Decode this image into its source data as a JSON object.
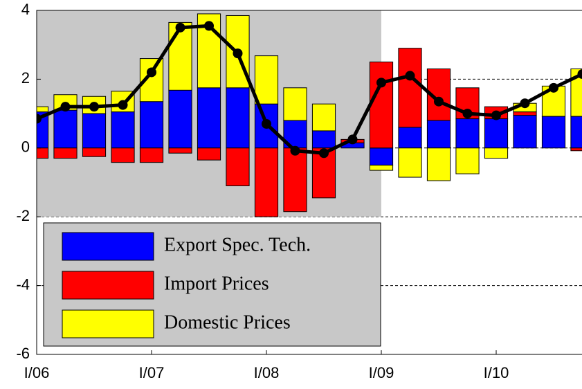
{
  "chart_data": {
    "type": "stacked-bar-line",
    "x": [
      0,
      1,
      2,
      3,
      4,
      5,
      6,
      7,
      8,
      9,
      10,
      11,
      12,
      13,
      14,
      15,
      16,
      17,
      18,
      19
    ],
    "xlim": [
      0,
      19
    ],
    "xticks": [
      {
        "value": 0,
        "label": "I/06"
      },
      {
        "value": 4,
        "label": "I/07"
      },
      {
        "value": 8,
        "label": "I/08"
      },
      {
        "value": 12,
        "label": "I/09"
      },
      {
        "value": 16,
        "label": "I/10"
      }
    ],
    "ylim": [
      -6,
      4
    ],
    "yticks": [
      -6,
      -4,
      -2,
      0,
      2,
      4
    ],
    "grid": true,
    "shade": {
      "xlim": [
        0,
        12
      ],
      "ylim": [
        -2,
        4
      ],
      "color": "#c8c8c8"
    },
    "legend_corner": "lower left",
    "series": [
      {
        "name": "Export Spec. Tech.",
        "color": "#0000ff",
        "values": [
          1.05,
          1.1,
          1.0,
          1.05,
          1.35,
          1.68,
          1.75,
          1.75,
          1.28,
          0.8,
          0.5,
          0.15,
          -0.5,
          0.6,
          0.8,
          0.85,
          0.85,
          0.95,
          0.92,
          0.92
        ]
      },
      {
        "name": "Import Prices",
        "color": "#ff0000",
        "values": [
          -0.3,
          -0.3,
          -0.25,
          -0.42,
          -0.42,
          -0.15,
          -0.35,
          -1.1,
          -2.0,
          -1.85,
          -1.45,
          0.1,
          2.5,
          2.3,
          1.5,
          0.9,
          0.35,
          0.1,
          0,
          -0.08
        ]
      },
      {
        "name": "Domestic Prices",
        "color": "#ffff00",
        "values": [
          0.15,
          0.45,
          0.5,
          0.6,
          1.25,
          1.97,
          2.15,
          2.1,
          1.4,
          0.95,
          0.78,
          0,
          -0.15,
          -0.85,
          -0.95,
          -0.75,
          -0.3,
          0.25,
          0.88,
          1.38
        ]
      }
    ],
    "line": {
      "color": "#000000",
      "values": [
        0.85,
        1.2,
        1.2,
        1.25,
        2.2,
        3.5,
        3.55,
        2.75,
        0.7,
        -0.08,
        -0.15,
        0.25,
        1.9,
        2.1,
        1.35,
        1.0,
        0.95,
        1.3,
        1.75,
        2.15
      ]
    }
  }
}
